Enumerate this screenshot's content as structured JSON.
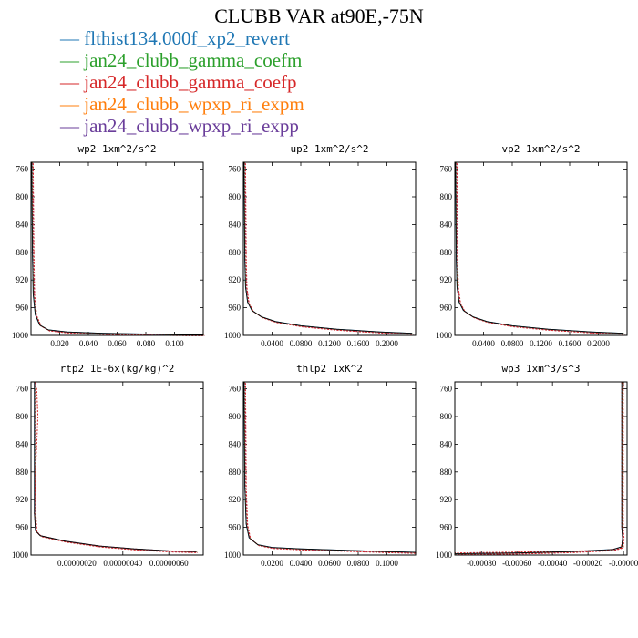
{
  "title": "CLUBB VAR at90E,-75N",
  "legend": [
    {
      "name": "flthist134.000f_xp2_revert",
      "color": "#1f77b4"
    },
    {
      "name": "jan24_clubb_gamma_coefm",
      "color": "#2ca02c"
    },
    {
      "name": "jan24_clubb_gamma_coefp",
      "color": "#d62728"
    },
    {
      "name": "jan24_clubb_wpxp_ri_expm",
      "color": "#ff7f0e"
    },
    {
      "name": "jan24_clubb_wpxp_ri_expp",
      "color": "#6a3d9a"
    }
  ],
  "chart_data": [
    {
      "type": "line",
      "title": "wp2   1xm^2/s^2",
      "xlim": [
        0,
        0.12
      ],
      "ylim": [
        1000,
        750
      ],
      "xticks": [
        0.02,
        0.04,
        0.06,
        0.08,
        0.1
      ],
      "xtick_labels": [
        "0.020",
        "0.040",
        "0.060",
        "0.080",
        "0.100"
      ],
      "yticks": [
        760,
        800,
        840,
        880,
        920,
        960,
        1000
      ],
      "series": [
        {
          "x": [
            0.0005,
            0.001,
            0.0015,
            0.003,
            0.006,
            0.012,
            0.025,
            0.05,
            0.08,
            0.11,
            0.12
          ],
          "y": [
            750,
            880,
            940,
            970,
            985,
            992,
            995,
            997,
            998,
            999,
            999
          ]
        }
      ]
    },
    {
      "type": "line",
      "title": "up2   1xm^2/s^2",
      "xlim": [
        0,
        0.24
      ],
      "ylim": [
        1000,
        750
      ],
      "xticks": [
        0.04,
        0.08,
        0.12,
        0.16,
        0.2
      ],
      "xtick_labels": [
        "0.0400",
        "0.0800",
        "0.1200",
        "0.1600",
        "0.2000"
      ],
      "yticks": [
        760,
        800,
        840,
        880,
        920,
        960,
        1000
      ],
      "series": [
        {
          "x": [
            0.001,
            0.002,
            0.003,
            0.006,
            0.012,
            0.025,
            0.045,
            0.08,
            0.13,
            0.19,
            0.235
          ],
          "y": [
            750,
            890,
            930,
            952,
            964,
            973,
            980,
            986,
            991,
            995,
            997
          ]
        }
      ]
    },
    {
      "type": "line",
      "title": "vp2   1xm^2/s^2",
      "xlim": [
        0,
        0.24
      ],
      "ylim": [
        1000,
        750
      ],
      "xticks": [
        0.04,
        0.08,
        0.12,
        0.16,
        0.2
      ],
      "xtick_labels": [
        "0.0400",
        "0.0800",
        "0.1200",
        "0.1600",
        "0.2000"
      ],
      "yticks": [
        760,
        800,
        840,
        880,
        920,
        960,
        1000
      ],
      "series": [
        {
          "x": [
            0.001,
            0.002,
            0.003,
            0.006,
            0.012,
            0.025,
            0.045,
            0.08,
            0.13,
            0.19,
            0.235
          ],
          "y": [
            750,
            890,
            930,
            952,
            964,
            973,
            980,
            986,
            991,
            995,
            997
          ]
        }
      ]
    },
    {
      "type": "line",
      "title": "rtp2   1E-6x(kg/kg)^2",
      "xlim": [
        0,
        7.5e-07
      ],
      "ylim": [
        1000,
        750
      ],
      "xticks": [
        2e-07,
        4e-07,
        6e-07
      ],
      "xtick_labels": [
        "0.0000002",
        "0.0000004",
        "0.0000006"
      ],
      "xtick_display": [
        "0.00000020",
        "0.00000040",
        "0.00000060"
      ],
      "yticks": [
        760,
        800,
        840,
        880,
        920,
        960,
        1000
      ],
      "series": [
        {
          "x": [
            1.5e-08,
            1.5e-08,
            1.5e-08,
            1.5e-08,
            2e-08,
            4e-08,
            1.5e-07,
            3e-07,
            4.5e-07,
            6e-07,
            7.2e-07
          ],
          "y": [
            750,
            800,
            880,
            940,
            965,
            972,
            980,
            987,
            991,
            994,
            995
          ]
        },
        {
          "x": [
            1.5e-08,
            2.5e-08,
            3e-08,
            2e-08,
            1.5e-08,
            2e-08,
            4e-08,
            1.5e-07,
            3e-07,
            4.5e-07,
            6e-07,
            7.2e-07
          ],
          "y": [
            750,
            760,
            800,
            880,
            940,
            965,
            972,
            980,
            987,
            991,
            994,
            995
          ]
        }
      ]
    },
    {
      "type": "line",
      "title": "thlp2   1xK^2",
      "xlim": [
        0,
        0.12
      ],
      "ylim": [
        1000,
        750
      ],
      "xticks": [
        0.02,
        0.04,
        0.06,
        0.08,
        0.1
      ],
      "xtick_labels": [
        "0.0200",
        "0.0400",
        "0.0600",
        "0.0800",
        "0.1000"
      ],
      "yticks": [
        760,
        800,
        840,
        880,
        920,
        960,
        1000
      ],
      "series": [
        {
          "x": [
            0.0005,
            0.001,
            0.002,
            0.004,
            0.01,
            0.02,
            0.04,
            0.07,
            0.1,
            0.12
          ],
          "y": [
            750,
            900,
            955,
            975,
            985,
            989,
            991,
            993,
            995,
            996
          ]
        }
      ]
    },
    {
      "type": "line",
      "title": "wp3   1xm^3/s^3",
      "xlim": [
        -0.00095,
        2e-05
      ],
      "ylim": [
        1000,
        750
      ],
      "xticks": [
        -0.0008,
        -0.0006,
        -0.0004,
        -0.0002,
        0
      ],
      "xtick_labels": [
        "-0.00080",
        "-0.00060",
        "-0.00040",
        "-0.00020",
        "-0.00000"
      ],
      "yticks": [
        760,
        800,
        840,
        880,
        920,
        960,
        1000
      ],
      "series": [
        {
          "x": [
            -1e-05,
            -1e-05,
            -1e-05,
            -5e-06,
            -1e-05,
            -6e-05,
            -0.0003,
            -0.0006,
            -0.00095
          ],
          "y": [
            750,
            880,
            960,
            975,
            988,
            992,
            995,
            997,
            998
          ]
        },
        {
          "x": [
            -1e-05,
            -1e-05,
            -1e-05,
            -5e-06,
            -1.5e-05,
            -0.0001,
            -0.0004,
            -0.0007,
            -0.00095
          ],
          "y": [
            750,
            880,
            960,
            978,
            990,
            993,
            995,
            996,
            997
          ]
        }
      ]
    }
  ]
}
